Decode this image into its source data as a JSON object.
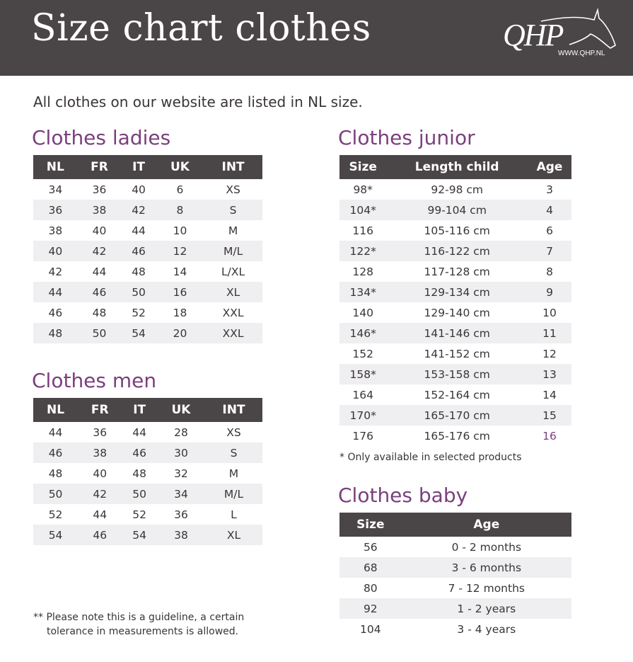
{
  "header": {
    "title": "Size chart clothes",
    "logo_text": "QHP",
    "logo_url": "WWW.QHP.NL"
  },
  "intro": "All clothes on our website are listed in NL size.",
  "colors": {
    "banner": "#4a4546",
    "accent": "#7b3f7e",
    "stripe": "#efeef0"
  },
  "ladies": {
    "title": "Clothes ladies",
    "columns": [
      "NL",
      "FR",
      "IT",
      "UK",
      "INT"
    ],
    "rows": [
      [
        "34",
        "36",
        "40",
        "6",
        "XS"
      ],
      [
        "36",
        "38",
        "42",
        "8",
        "S"
      ],
      [
        "38",
        "40",
        "44",
        "10",
        "M"
      ],
      [
        "40",
        "42",
        "46",
        "12",
        "M/L"
      ],
      [
        "42",
        "44",
        "48",
        "14",
        "L/XL"
      ],
      [
        "44",
        "46",
        "50",
        "16",
        "XL"
      ],
      [
        "46",
        "48",
        "52",
        "18",
        "XXL"
      ],
      [
        "48",
        "50",
        "54",
        "20",
        "XXL"
      ]
    ]
  },
  "men": {
    "title": "Clothes men",
    "columns": [
      "NL",
      "FR",
      "IT",
      "UK",
      "INT"
    ],
    "rows": [
      [
        "44",
        "36",
        "44",
        "28",
        "XS"
      ],
      [
        "46",
        "38",
        "46",
        "30",
        "S"
      ],
      [
        "48",
        "40",
        "48",
        "32",
        "M"
      ],
      [
        "50",
        "42",
        "50",
        "34",
        "M/L"
      ],
      [
        "52",
        "44",
        "52",
        "36",
        "L"
      ],
      [
        "54",
        "46",
        "54",
        "38",
        "XL"
      ]
    ]
  },
  "junior": {
    "title": "Clothes junior",
    "columns": [
      "Size",
      "Length child",
      "Age"
    ],
    "rows": [
      [
        "98*",
        "92-98 cm",
        "3"
      ],
      [
        "104*",
        "99-104 cm",
        "4"
      ],
      [
        "116",
        "105-116 cm",
        "6"
      ],
      [
        "122*",
        "116-122 cm",
        "7"
      ],
      [
        "128",
        "117-128 cm",
        "8"
      ],
      [
        "134*",
        "129-134 cm",
        "9"
      ],
      [
        "140",
        "129-140 cm",
        "10"
      ],
      [
        "146*",
        "141-146 cm",
        "11"
      ],
      [
        "152",
        "141-152 cm",
        "12"
      ],
      [
        "158*",
        "153-158 cm",
        "13"
      ],
      [
        "164",
        "152-164 cm",
        "14"
      ],
      [
        "170*",
        "165-170 cm",
        "15"
      ],
      [
        "176",
        "165-176 cm",
        "16"
      ]
    ],
    "note": "* Only available in selected products"
  },
  "baby": {
    "title": "Clothes baby",
    "columns": [
      "Size",
      "Age"
    ],
    "rows": [
      [
        "56",
        "0 - 2 months"
      ],
      [
        "68",
        "3 - 6 months"
      ],
      [
        "80",
        "7 - 12 months"
      ],
      [
        "92",
        "1 - 2 years"
      ],
      [
        "104",
        "3 - 4 years"
      ]
    ]
  },
  "footnote": [
    "** Please note this is a guideline, a certain",
    "tolerance in measurements is allowed."
  ]
}
